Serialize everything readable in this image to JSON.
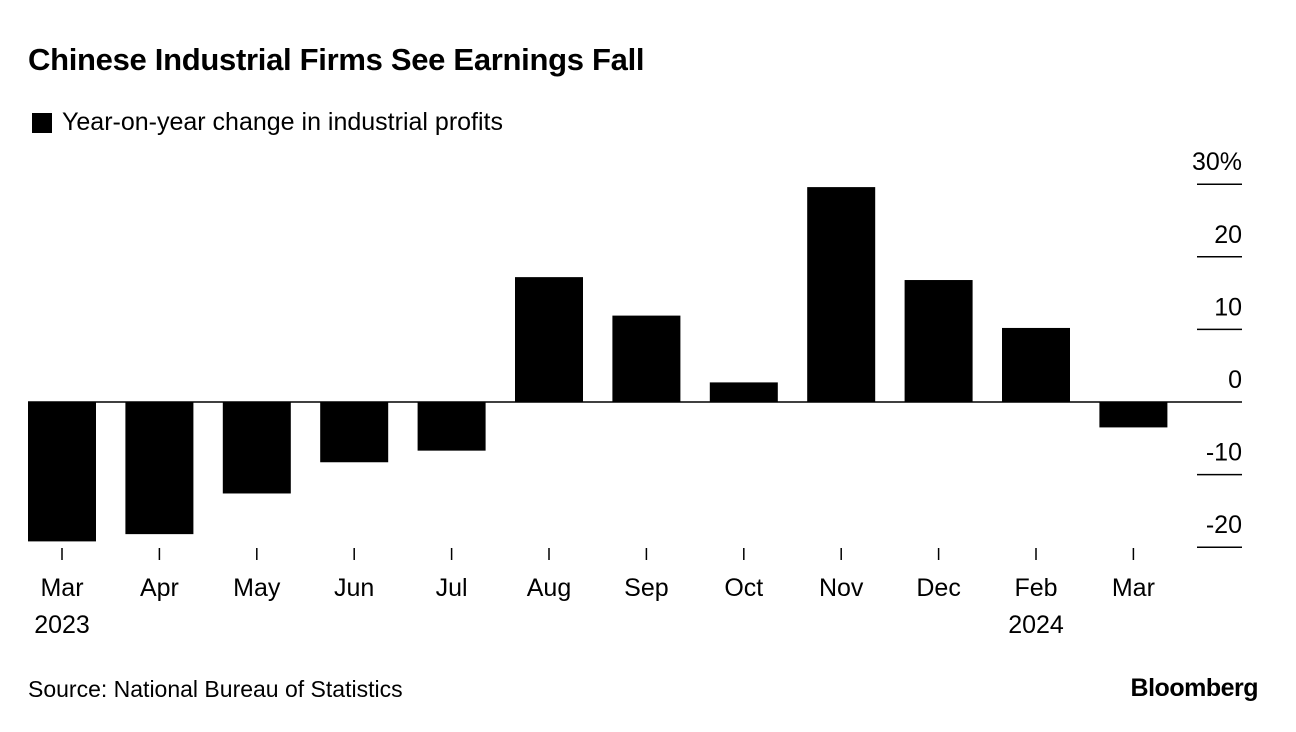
{
  "chart_data": {
    "type": "bar",
    "title": "Chinese Industrial Firms See Earnings Fall",
    "legend": [
      "Year-on-year change in industrial profits"
    ],
    "categories": [
      "Mar 2023",
      "Apr",
      "May",
      "Jun",
      "Jul",
      "Aug",
      "Sep",
      "Oct",
      "Nov",
      "Dec",
      "Feb 2024",
      "Mar"
    ],
    "tick_labels": [
      [
        "Mar",
        "2023"
      ],
      [
        "Apr"
      ],
      [
        "May"
      ],
      [
        "Jun"
      ],
      [
        "Jul"
      ],
      [
        "Aug"
      ],
      [
        "Sep"
      ],
      [
        "Oct"
      ],
      [
        "Nov"
      ],
      [
        "Dec"
      ],
      [
        "Feb",
        "2024"
      ],
      [
        "Mar"
      ]
    ],
    "series": [
      {
        "name": "Year-on-year change in industrial profits",
        "values": [
          -19.2,
          -18.2,
          -12.6,
          -8.3,
          -6.7,
          17.2,
          11.9,
          2.7,
          29.6,
          16.8,
          10.2,
          -3.5
        ]
      }
    ],
    "yticks": [
      30,
      20,
      10,
      0,
      -10,
      -20
    ],
    "ytick_labels": [
      "30%",
      "20",
      "10",
      "0",
      "-10",
      "-20"
    ],
    "ylim": [
      -20,
      30
    ],
    "y_axis_side": "right",
    "bar_color": "#000000",
    "source": "Source: National Bureau of Statistics",
    "brand": "Bloomberg"
  }
}
